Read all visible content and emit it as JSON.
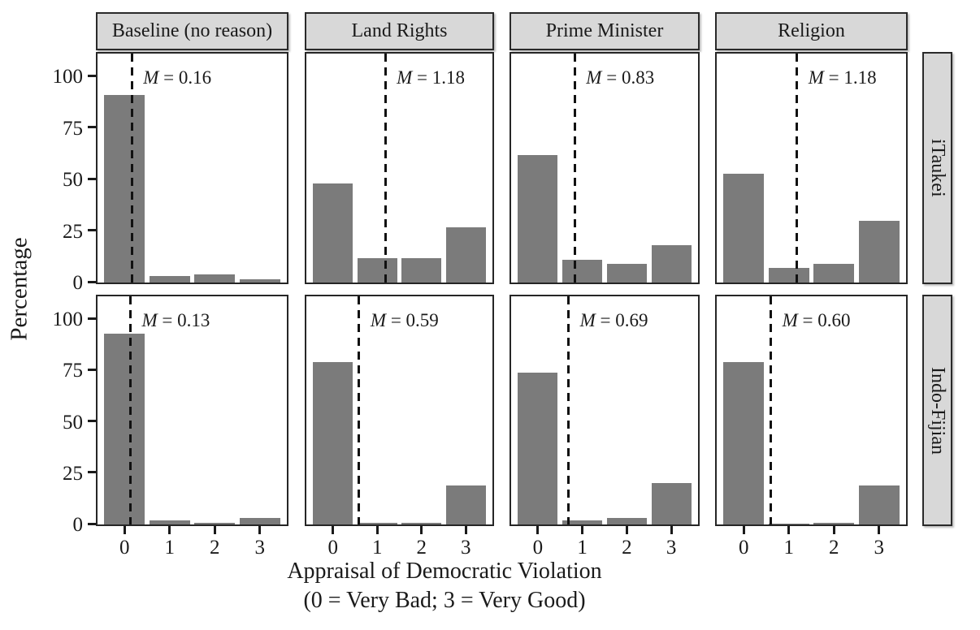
{
  "chart_data": {
    "type": "bar",
    "ylabel": "Percentage",
    "xlabel_line1": "Appraisal of Democratic Violation",
    "xlabel_line2": "(0 = Very Bad; 3 = Very Good)",
    "categories": [
      "0",
      "1",
      "2",
      "3"
    ],
    "y_ticks": [
      0,
      25,
      50,
      75,
      100
    ],
    "ylim": [
      0,
      110
    ],
    "grid": "off",
    "mean_symbol": "M",
    "facet": {
      "columns": [
        "Baseline (no reason)",
        "Land Rights",
        "Prime Minister",
        "Religion"
      ],
      "rows": [
        "iTaukei",
        "Indo-Fijian"
      ]
    },
    "panels": [
      {
        "row": "iTaukei",
        "column": "Baseline (no reason)",
        "mean": 0.16,
        "mean_text": "0.16",
        "values": [
          91,
          3,
          4,
          1.5
        ]
      },
      {
        "row": "iTaukei",
        "column": "Land Rights",
        "mean": 1.18,
        "mean_text": "1.18",
        "values": [
          48,
          12,
          12,
          27
        ]
      },
      {
        "row": "iTaukei",
        "column": "Prime Minister",
        "mean": 0.83,
        "mean_text": "0.83",
        "values": [
          62,
          11,
          9,
          18
        ]
      },
      {
        "row": "iTaukei",
        "column": "Religion",
        "mean": 1.18,
        "mean_text": "1.18",
        "values": [
          53,
          7,
          9,
          30
        ]
      },
      {
        "row": "Indo-Fijian",
        "column": "Baseline (no reason)",
        "mean": 0.13,
        "mean_text": "0.13",
        "values": [
          93,
          2,
          1,
          3
        ]
      },
      {
        "row": "Indo-Fijian",
        "column": "Land Rights",
        "mean": 0.59,
        "mean_text": "0.59",
        "values": [
          79,
          1,
          1,
          19
        ]
      },
      {
        "row": "Indo-Fijian",
        "column": "Prime Minister",
        "mean": 0.69,
        "mean_text": "0.69",
        "values": [
          74,
          2,
          3,
          20
        ]
      },
      {
        "row": "Indo-Fijian",
        "column": "Religion",
        "mean": 0.6,
        "mean_text": "0.60",
        "values": [
          79,
          0.5,
          1,
          19
        ]
      }
    ],
    "colors": {
      "bar": "#7b7b7b",
      "strip_bg": "#d8d8d8",
      "panel_border": "#262626",
      "mean_line": "#111111",
      "text": "#1a1a1a"
    }
  }
}
